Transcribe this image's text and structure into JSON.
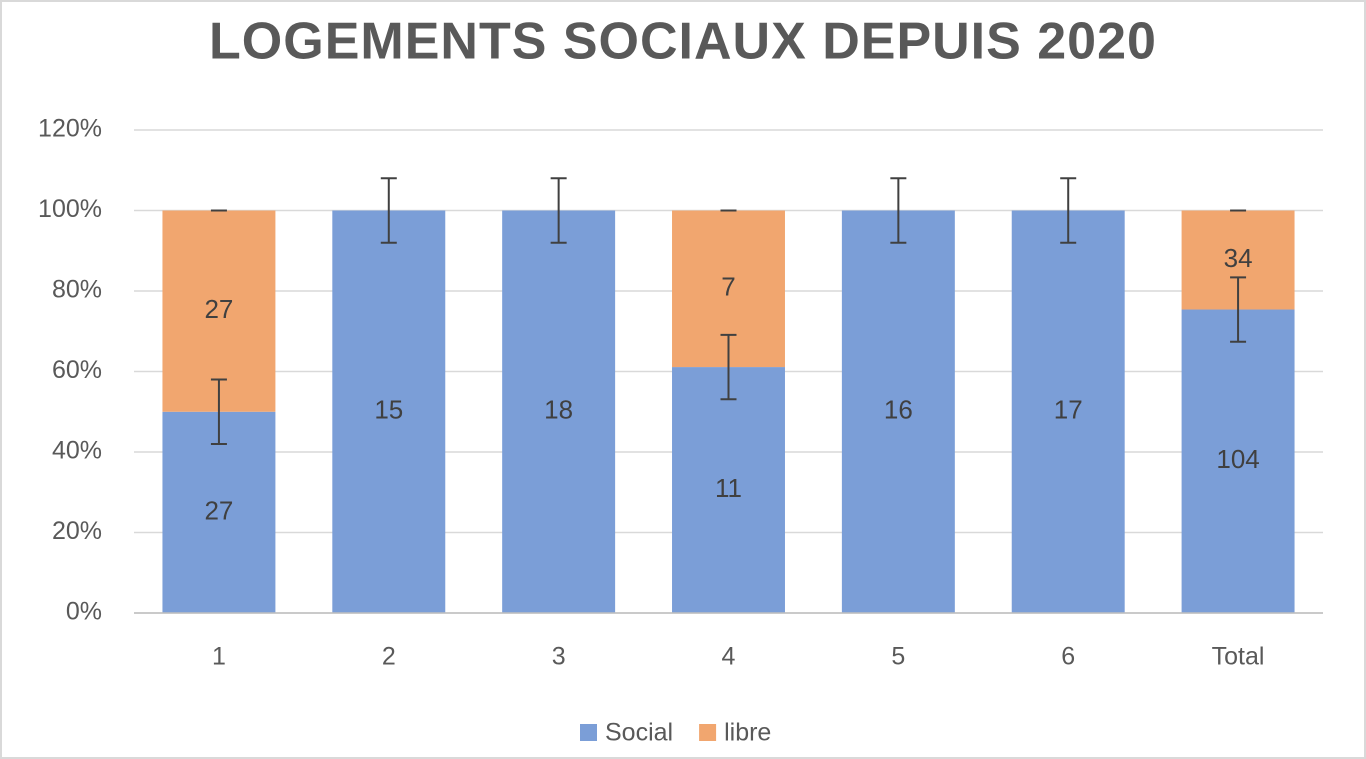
{
  "chart_data": {
    "type": "bar",
    "stacked": true,
    "title": "LOGEMENTS SOCIAUX DEPUIS 2020",
    "categories": [
      "1",
      "2",
      "3",
      "4",
      "5",
      "6",
      "Total"
    ],
    "series": [
      {
        "name": "Social",
        "color": "#7b9ed7",
        "values": [
          50,
          100,
          100,
          61.1,
          100,
          100,
          75.4
        ],
        "errors": [
          8,
          8,
          8,
          8,
          8,
          8,
          8
        ],
        "counts": [
          27,
          15,
          18,
          11,
          16,
          17,
          104
        ]
      },
      {
        "name": "libre",
        "color": "#f1a66f",
        "values": [
          50,
          0,
          0,
          38.9,
          0,
          0,
          24.6
        ],
        "errors": [
          0,
          0,
          0,
          0,
          0,
          0,
          0
        ],
        "counts": [
          27,
          null,
          null,
          7,
          null,
          null,
          34
        ]
      }
    ],
    "ylim": [
      0,
      120
    ],
    "yticks": [
      {
        "value": 0,
        "label": "0%"
      },
      {
        "value": 20,
        "label": "20%"
      },
      {
        "value": 40,
        "label": "40%"
      },
      {
        "value": 60,
        "label": "60%"
      },
      {
        "value": 80,
        "label": "80%"
      },
      {
        "value": 100,
        "label": "100%"
      },
      {
        "value": 120,
        "label": "120%"
      }
    ],
    "grid": true,
    "legend": "bottom"
  }
}
